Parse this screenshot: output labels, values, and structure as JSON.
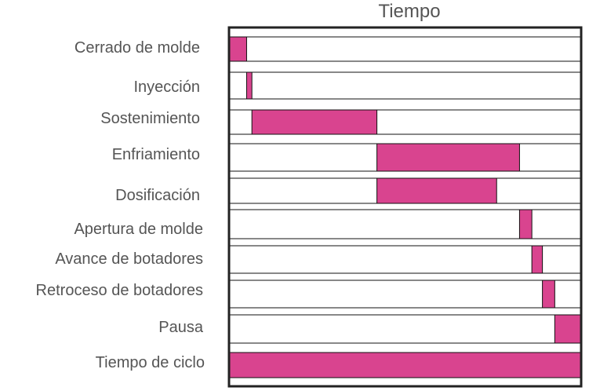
{
  "chart_data": {
    "type": "bar",
    "orientation": "horizontal-gantt",
    "title": "Tiempo",
    "xlabel": "",
    "ylabel": "",
    "xlim": [
      0,
      100
    ],
    "grid": false,
    "legend": "none",
    "bar_color": "#d9448f",
    "row_border_color": "#111111",
    "frame_color": "#222222",
    "text_color": "#555555",
    "tasks": [
      {
        "label": "Cerrado de molde",
        "start": 0,
        "end": 5
      },
      {
        "label": "Inyección",
        "start": 5,
        "end": 6.5
      },
      {
        "label": "Sostenimiento",
        "start": 6.5,
        "end": 42
      },
      {
        "label": "Enfriamiento",
        "start": 42,
        "end": 82.5
      },
      {
        "label": "Dosificación",
        "start": 42,
        "end": 76
      },
      {
        "label": "Apertura de molde",
        "start": 82.5,
        "end": 86
      },
      {
        "label": "Avance de botadores",
        "start": 86,
        "end": 89
      },
      {
        "label": "Retroceso de botadores",
        "start": 89,
        "end": 92.5
      },
      {
        "label": "Pausa",
        "start": 92.5,
        "end": 100
      },
      {
        "label": "Tiempo de ciclo",
        "start": 0,
        "end": 100
      }
    ]
  }
}
